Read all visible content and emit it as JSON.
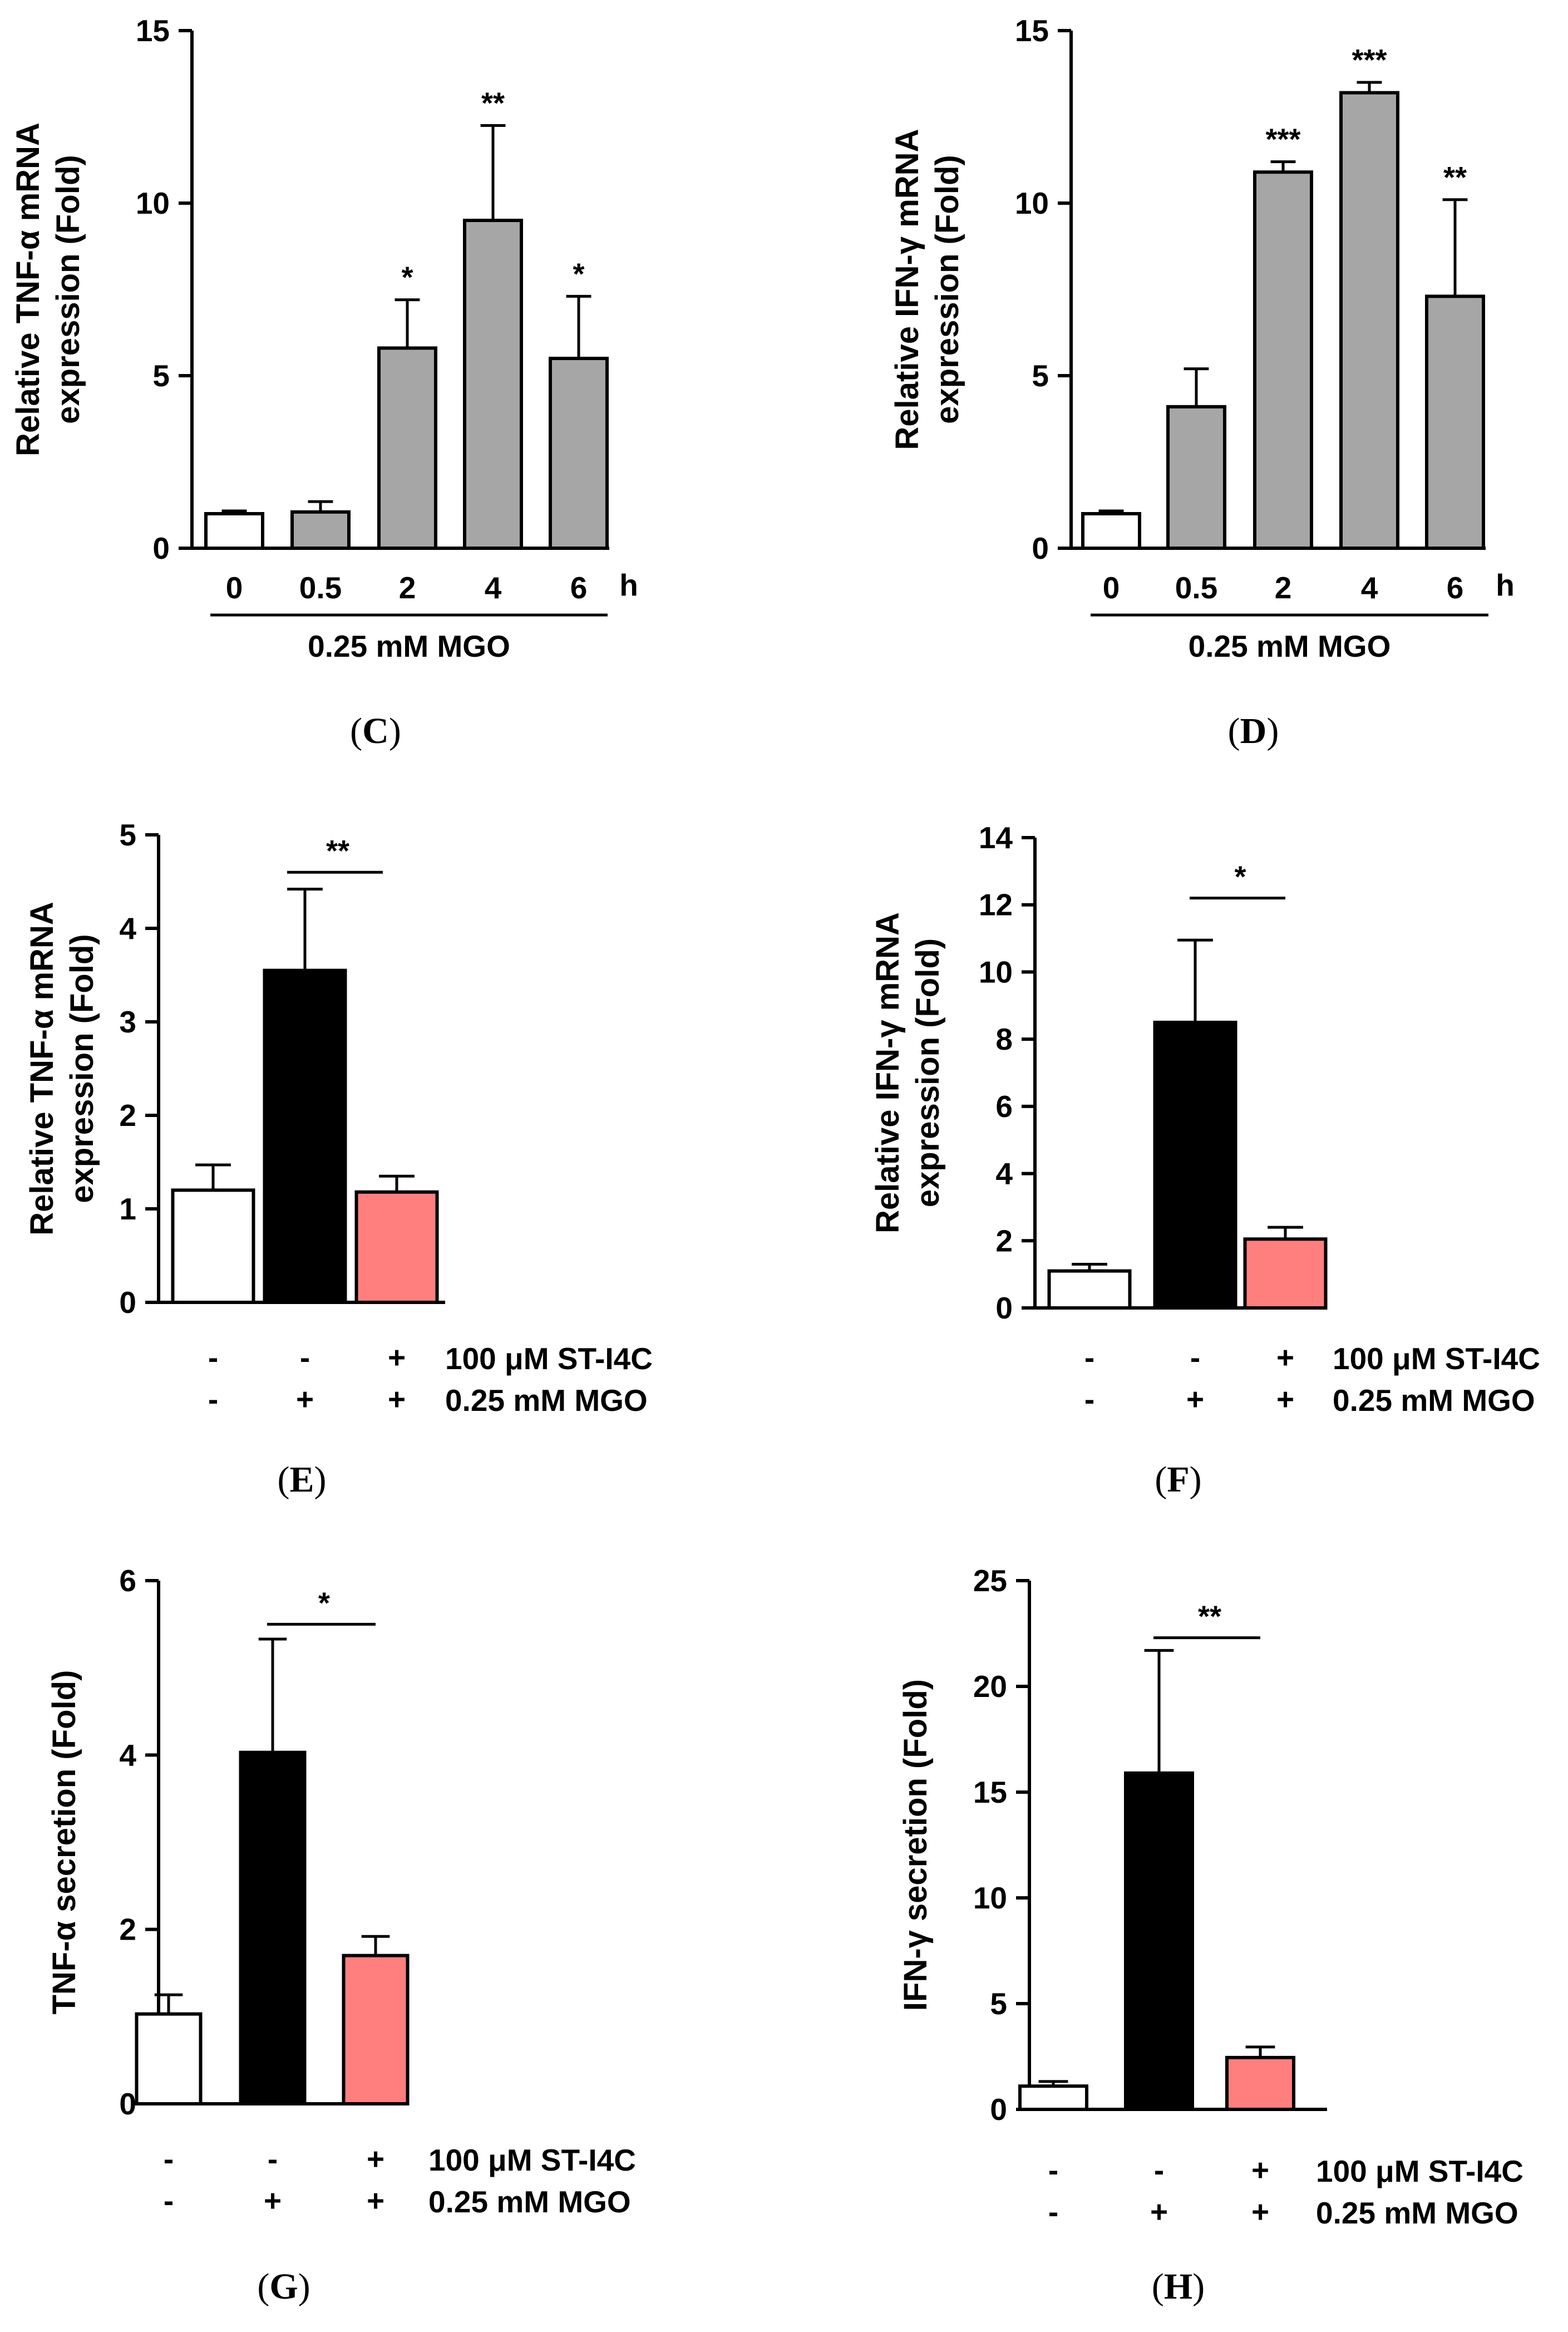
{
  "chart_data": [
    {
      "id": "C",
      "type": "bar",
      "panel_label": "C",
      "ylabel_line1": "Relative TNF-α mRNA",
      "ylabel_line2": "expression (Fold)",
      "ylim": [
        0,
        15
      ],
      "yticks": [
        "0",
        "5",
        "10",
        "15"
      ],
      "categories": [
        "0",
        "0.5",
        "2",
        "4",
        "6"
      ],
      "x_unit": "h",
      "values": [
        1.0,
        1.05,
        5.8,
        9.5,
        5.5
      ],
      "errors": [
        0.08,
        0.3,
        1.4,
        2.75,
        1.8
      ],
      "significance": [
        "",
        "",
        "*",
        "**",
        "*"
      ],
      "colors": [
        "#ffffff",
        "#a6a6a6",
        "#a6a6a6",
        "#a6a6a6",
        "#a6a6a6"
      ],
      "group_label": "0.25 mM MGO"
    },
    {
      "id": "D",
      "type": "bar",
      "panel_label": "D",
      "ylabel_line1": "Relative IFN-γ mRNA",
      "ylabel_line2": "expression (Fold)",
      "ylim": [
        0,
        15
      ],
      "yticks": [
        "0",
        "5",
        "10",
        "15"
      ],
      "categories": [
        "0",
        "0.5",
        "2",
        "4",
        "6"
      ],
      "x_unit": "h",
      "values": [
        1.0,
        4.1,
        10.9,
        13.2,
        7.3
      ],
      "errors": [
        0.08,
        1.1,
        0.3,
        0.3,
        2.8
      ],
      "significance": [
        "",
        "",
        "***",
        "***",
        "**"
      ],
      "colors": [
        "#ffffff",
        "#a6a6a6",
        "#a6a6a6",
        "#a6a6a6",
        "#a6a6a6"
      ],
      "group_label": "0.25 mM MGO"
    },
    {
      "id": "E",
      "type": "bar",
      "panel_label": "E",
      "ylabel_line1": "Relative TNF-α mRNA",
      "ylabel_line2": "expression (Fold)",
      "ylim": [
        0,
        5
      ],
      "yticks": [
        "0",
        "1",
        "2",
        "3",
        "4",
        "5"
      ],
      "values": [
        1.2,
        3.55,
        1.18
      ],
      "errors": [
        0.27,
        0.87,
        0.17
      ],
      "colors": [
        "#ffffff",
        "#000000",
        "#ff7f7f"
      ],
      "bracket": {
        "from": 1,
        "to": 2,
        "value": 4.6,
        "label": "**"
      },
      "treatment_rows": [
        {
          "label": "100 μM ST-I4C",
          "signs": [
            "-",
            "-",
            "+"
          ]
        },
        {
          "label": "0.25 mM MGO",
          "signs": [
            "-",
            "+",
            "+"
          ]
        }
      ]
    },
    {
      "id": "F",
      "type": "bar",
      "panel_label": "F",
      "ylabel_line1": "Relative IFN-γ mRNA",
      "ylabel_line2": "expression (Fold)",
      "ylim": [
        0,
        14
      ],
      "yticks": [
        "0",
        "2",
        "4",
        "6",
        "8",
        "10",
        "12",
        "14"
      ],
      "values": [
        1.1,
        8.5,
        2.05
      ],
      "errors": [
        0.2,
        2.45,
        0.35
      ],
      "colors": [
        "#ffffff",
        "#000000",
        "#ff7f7f"
      ],
      "bracket": {
        "from": 1,
        "to": 2,
        "value": 12.2,
        "label": "*"
      },
      "treatment_rows": [
        {
          "label": "100 μM ST-I4C",
          "signs": [
            "-",
            "-",
            "+"
          ]
        },
        {
          "label": "0.25 mM MGO",
          "signs": [
            "-",
            "+",
            "+"
          ]
        }
      ]
    },
    {
      "id": "G",
      "type": "bar",
      "panel_label": "G",
      "ylabel_line1": "TNF-α secretion (Fold)",
      "ylabel_line2": "",
      "ylim": [
        0,
        6
      ],
      "yticks": [
        "0",
        "2",
        "4",
        "6"
      ],
      "values": [
        1.03,
        4.03,
        1.7
      ],
      "errors": [
        0.22,
        1.3,
        0.22
      ],
      "colors": [
        "#ffffff",
        "#000000",
        "#ff7f7f"
      ],
      "bracket": {
        "from": 1,
        "to": 2,
        "value": 5.5,
        "label": "*"
      },
      "treatment_rows": [
        {
          "label": "100 μM ST-I4C",
          "signs": [
            "-",
            "-",
            "+"
          ]
        },
        {
          "label": "0.25 mM MGO",
          "signs": [
            "-",
            "+",
            "+"
          ]
        }
      ]
    },
    {
      "id": "H",
      "type": "bar",
      "panel_label": "H",
      "ylabel_line1": "IFN-γ secretion (Fold)",
      "ylabel_line2": "",
      "ylim": [
        0,
        25
      ],
      "yticks": [
        "0",
        "5",
        "10",
        "15",
        "20",
        "25"
      ],
      "values": [
        1.1,
        15.9,
        2.45
      ],
      "errors": [
        0.22,
        5.8,
        0.5
      ],
      "colors": [
        "#ffffff",
        "#000000",
        "#ff7f7f"
      ],
      "bracket": {
        "from": 1,
        "to": 2,
        "value": 22.3,
        "label": "**"
      },
      "treatment_rows": [
        {
          "label": "100 μM ST-I4C",
          "signs": [
            "-",
            "-",
            "+"
          ]
        },
        {
          "label": "0.25 mM MGO",
          "signs": [
            "-",
            "+",
            "+"
          ]
        }
      ]
    }
  ]
}
